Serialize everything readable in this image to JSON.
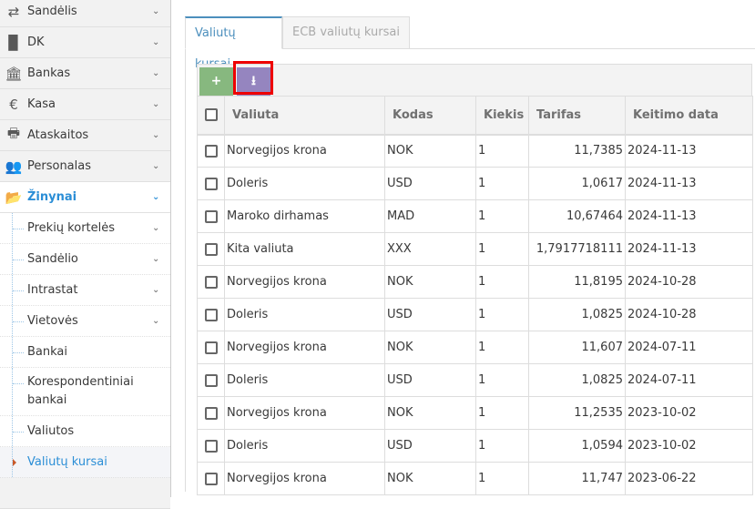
{
  "sidebar": {
    "items": [
      {
        "label": "Sandėlis",
        "icon": "exchange-icon",
        "glyph": "⇄"
      },
      {
        "label": "DK",
        "icon": "book-icon",
        "glyph": "▉"
      },
      {
        "label": "Bankas",
        "icon": "bank-icon",
        "glyph": "🏛"
      },
      {
        "label": "Kasa",
        "icon": "euro-icon",
        "glyph": "€"
      },
      {
        "label": "Ataskaitos",
        "icon": "print-icon",
        "glyph": "🖶"
      },
      {
        "label": "Personalas",
        "icon": "users-icon",
        "glyph": "👥"
      },
      {
        "label": "Žinynai",
        "icon": "folder-open-icon",
        "glyph": "📂"
      }
    ],
    "subitems": [
      {
        "label": "Prekių kortelės",
        "has_children": true
      },
      {
        "label": "Sandėlio",
        "has_children": true
      },
      {
        "label": "Intrastat",
        "has_children": true
      },
      {
        "label": "Vietovės",
        "has_children": true
      },
      {
        "label": "Bankai"
      },
      {
        "label": "Korespondentiniai bankai"
      },
      {
        "label": "Valiutos"
      },
      {
        "label": "Valiutų kursai",
        "active": true
      }
    ]
  },
  "tabs": [
    {
      "label": "Valiutų kursai",
      "active": true
    },
    {
      "label": "ECB valiutų kursai"
    }
  ],
  "toolbar": {
    "add": "+",
    "download": "⭳"
  },
  "colors": {
    "accent": "#2b8ed6",
    "add_button": "#87b87f",
    "download_button": "#9585bf",
    "highlight": "#ee0000"
  },
  "table": {
    "headers": [
      "Valiuta",
      "Kodas",
      "Kiekis",
      "Tarifas",
      "Keitimo data"
    ],
    "rows": [
      [
        "Norvegijos krona",
        "NOK",
        "1",
        "11,7385",
        "2024-11-13"
      ],
      [
        "Doleris",
        "USD",
        "1",
        "1,0617",
        "2024-11-13"
      ],
      [
        "Maroko dirhamas",
        "MAD",
        "1",
        "10,67464",
        "2024-11-13"
      ],
      [
        "Kita valiuta",
        "XXX",
        "1",
        "1,7917718111",
        "2024-11-13"
      ],
      [
        "Norvegijos krona",
        "NOK",
        "1",
        "11,8195",
        "2024-10-28"
      ],
      [
        "Doleris",
        "USD",
        "1",
        "1,0825",
        "2024-10-28"
      ],
      [
        "Norvegijos krona",
        "NOK",
        "1",
        "11,607",
        "2024-07-11"
      ],
      [
        "Doleris",
        "USD",
        "1",
        "1,0825",
        "2024-07-11"
      ],
      [
        "Norvegijos krona",
        "NOK",
        "1",
        "11,2535",
        "2023-10-02"
      ],
      [
        "Doleris",
        "USD",
        "1",
        "1,0594",
        "2023-10-02"
      ],
      [
        "Norvegijos krona",
        "NOK",
        "1",
        "11,747",
        "2023-06-22"
      ]
    ]
  }
}
